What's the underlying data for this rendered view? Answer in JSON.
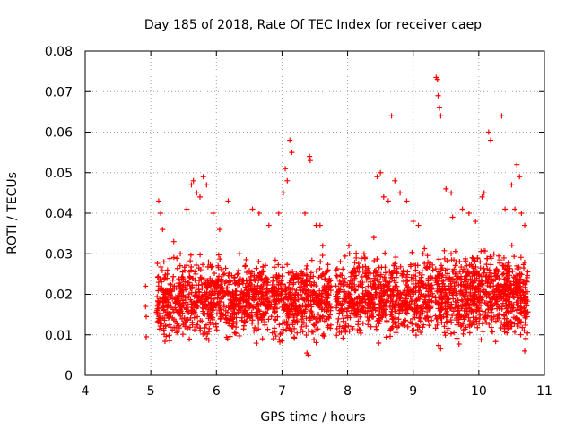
{
  "chart_data": {
    "type": "scatter",
    "title": "Day 185 of 2018, Rate Of TEC Index for receiver caep",
    "xlabel": "GPS time / hours",
    "ylabel": "ROTI / TECUs",
    "xlim": [
      4,
      11
    ],
    "ylim": [
      0,
      0.08
    ],
    "x_ticks": [
      "4",
      "5",
      "6",
      "7",
      "8",
      "9",
      "10",
      "11"
    ],
    "y_ticks": [
      "0",
      "0.01",
      "0.02",
      "0.03",
      "0.04",
      "0.05",
      "0.06",
      "0.07",
      "0.08"
    ],
    "grid": true,
    "marker": "+",
    "series": [
      {
        "name": "ROTI",
        "color": "#ff0000",
        "points": [
          [
            4.92,
            0.022
          ],
          [
            4.92,
            0.017
          ],
          [
            4.93,
            0.0145
          ],
          [
            4.93,
            0.0095
          ],
          [
            5.12,
            0.043
          ],
          [
            5.15,
            0.04
          ],
          [
            5.18,
            0.036
          ],
          [
            5.2,
            0.028
          ],
          [
            5.22,
            0.02
          ],
          [
            5.25,
            0.015
          ],
          [
            5.35,
            0.033
          ],
          [
            5.45,
            0.03
          ],
          [
            5.55,
            0.041
          ],
          [
            5.62,
            0.047
          ],
          [
            5.65,
            0.048
          ],
          [
            5.7,
            0.045
          ],
          [
            5.75,
            0.044
          ],
          [
            5.8,
            0.049
          ],
          [
            5.85,
            0.047
          ],
          [
            5.95,
            0.04
          ],
          [
            6.05,
            0.036
          ],
          [
            6.18,
            0.043
          ],
          [
            6.35,
            0.03
          ],
          [
            6.55,
            0.041
          ],
          [
            6.65,
            0.04
          ],
          [
            6.8,
            0.037
          ],
          [
            6.95,
            0.04
          ],
          [
            7.02,
            0.045
          ],
          [
            7.05,
            0.051
          ],
          [
            7.08,
            0.048
          ],
          [
            7.12,
            0.058
          ],
          [
            7.15,
            0.055
          ],
          [
            7.35,
            0.04
          ],
          [
            7.38,
            0.027
          ],
          [
            7.42,
            0.054
          ],
          [
            7.43,
            0.053
          ],
          [
            7.38,
            0.0055
          ],
          [
            7.4,
            0.005
          ],
          [
            7.52,
            0.037
          ],
          [
            7.58,
            0.037
          ],
          [
            7.62,
            0.032
          ],
          [
            7.7,
            0.026
          ],
          [
            8.02,
            0.032
          ],
          [
            8.25,
            0.03
          ],
          [
            8.4,
            0.034
          ],
          [
            8.45,
            0.049
          ],
          [
            8.5,
            0.05
          ],
          [
            8.55,
            0.044
          ],
          [
            8.62,
            0.043
          ],
          [
            8.67,
            0.064
          ],
          [
            8.72,
            0.048
          ],
          [
            8.8,
            0.045
          ],
          [
            8.9,
            0.043
          ],
          [
            9.0,
            0.038
          ],
          [
            9.08,
            0.037
          ],
          [
            9.15,
            0.03
          ],
          [
            9.35,
            0.0735
          ],
          [
            9.37,
            0.073
          ],
          [
            9.38,
            0.069
          ],
          [
            9.4,
            0.066
          ],
          [
            9.42,
            0.064
          ],
          [
            9.5,
            0.046
          ],
          [
            9.58,
            0.045
          ],
          [
            9.6,
            0.039
          ],
          [
            9.75,
            0.041
          ],
          [
            9.85,
            0.04
          ],
          [
            9.95,
            0.038
          ],
          [
            10.05,
            0.044
          ],
          [
            10.08,
            0.045
          ],
          [
            10.15,
            0.06
          ],
          [
            10.18,
            0.058
          ],
          [
            10.35,
            0.064
          ],
          [
            10.4,
            0.041
          ],
          [
            10.5,
            0.047
          ],
          [
            10.55,
            0.041
          ],
          [
            10.58,
            0.052
          ],
          [
            10.62,
            0.049
          ],
          [
            10.65,
            0.04
          ],
          [
            10.7,
            0.037
          ],
          [
            10.72,
            0.015
          ],
          [
            10.7,
            0.006
          ]
        ]
      }
    ],
    "dense_bands": [
      {
        "from": 5.08,
        "to": 7.75,
        "min": 0.006,
        "max": 0.03,
        "count": 1300
      },
      {
        "from": 7.82,
        "to": 9.3,
        "min": 0.006,
        "max": 0.031,
        "count": 700
      },
      {
        "from": 9.33,
        "to": 10.75,
        "min": 0.006,
        "max": 0.032,
        "count": 800
      }
    ],
    "seed": 185
  }
}
